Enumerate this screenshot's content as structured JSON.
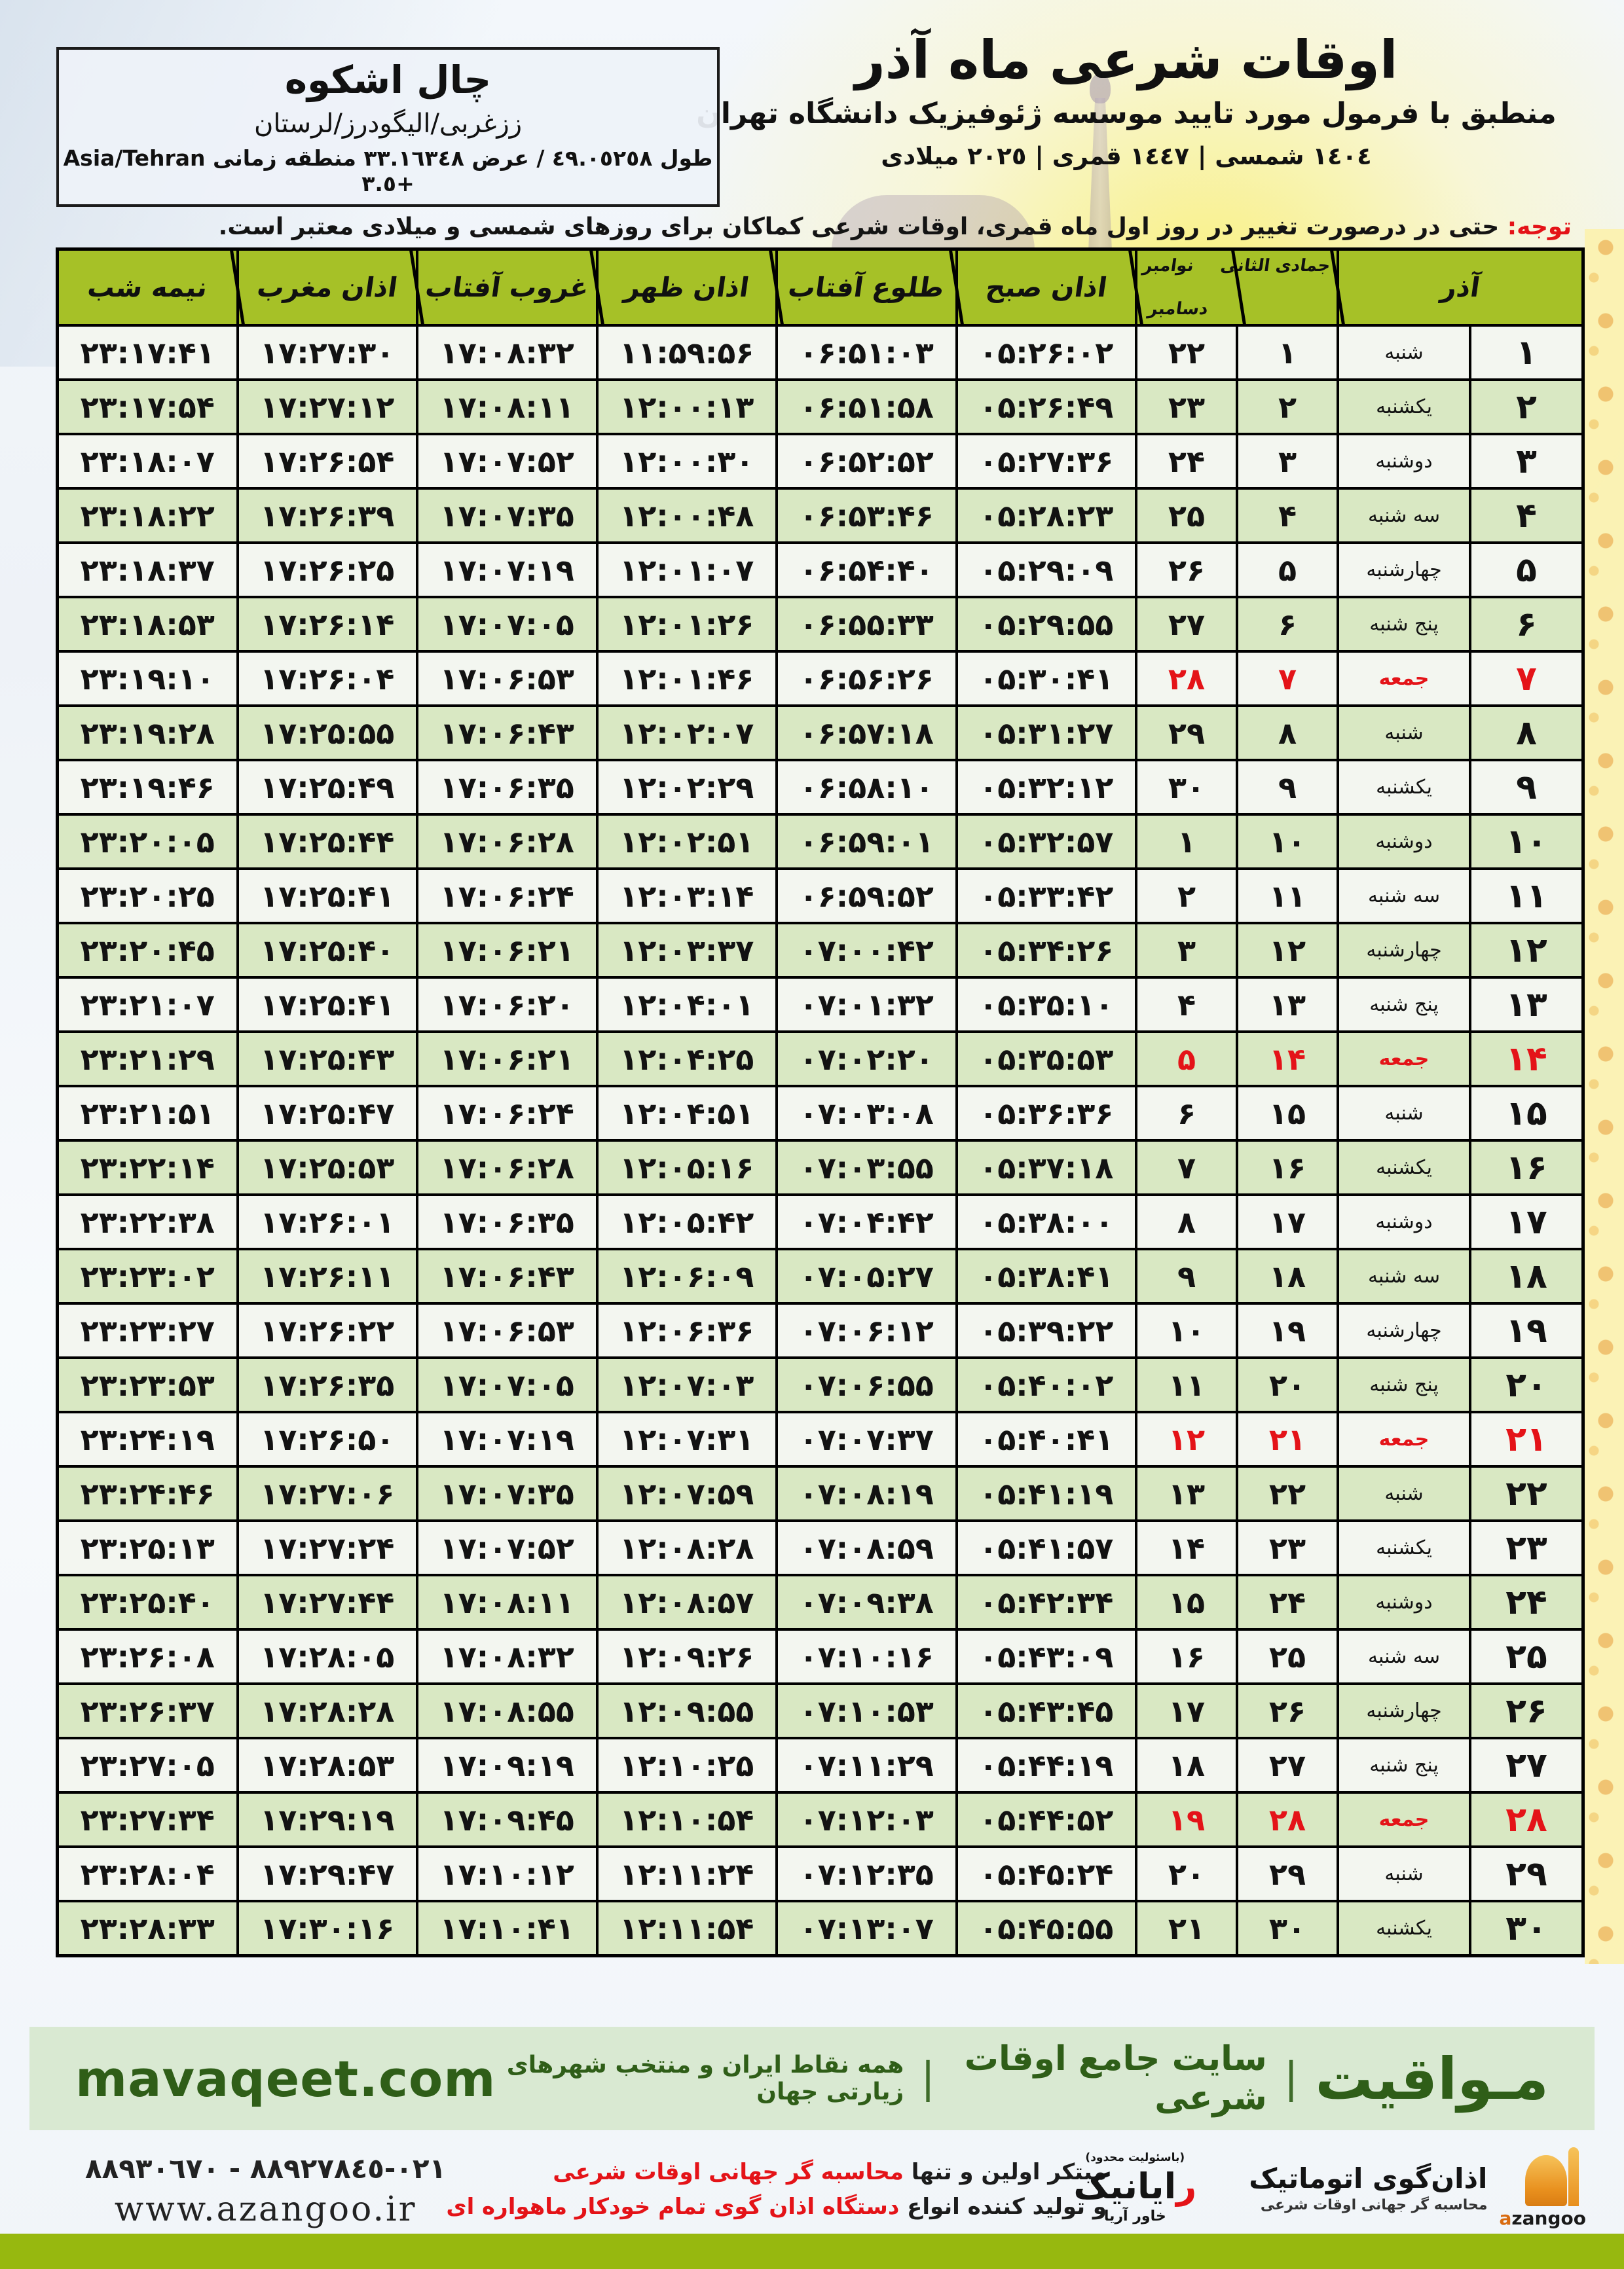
{
  "colors": {
    "headerGreen": "#a6c127",
    "rowOdd": "#f3f6f0",
    "rowEven": "#d9e8c3",
    "red": "#e41318",
    "footerBand": "#d9e9d2",
    "footerGreenText": "#2f5e18",
    "bottomBar": "#97b80f"
  },
  "header": {
    "title": "اوقات شرعی ماه آذر",
    "subtitle": "منطبق با فرمول مورد تایید موسسه ژئوفیزیک دانشگاه تهران",
    "years": "١٤٠٤ شمسی | ١٤٤٧ قمری | ٢٠٢٥ میلادی"
  },
  "location": {
    "name": "چال اشکوه",
    "region": "ززغربی/الیگودرز/لرستان",
    "coords": "طول ٤٩.٠٥٢٥٨ / عرض ٣٣.١٦٣٤٨ منطقه زمانی Asia/Tehran +٣.٥"
  },
  "note": {
    "label": "توجه:",
    "text": " حتی در درصورت تغییر در روز اول ماه قمری، اوقات شرعی کماکان برای روزهای شمسی و میلادی معتبر است."
  },
  "table": {
    "headers": {
      "azar": "آذر",
      "jumada": "جمادی الثانی",
      "november": "نوامبر",
      "december": "دسامبر",
      "sobh": "اذان صبح",
      "tolu": "طلوع آفتاب",
      "zohr": "اذان ظهر",
      "ghorub": "غروب آفتاب",
      "maghreb": "اذان مغرب",
      "nimeshab": "نیمه شب"
    },
    "column_keys": [
      "azar",
      "weekday",
      "jumada",
      "miladi",
      "sobh",
      "tolu",
      "zohr",
      "ghorub",
      "maghreb",
      "nimeshab"
    ],
    "rows": [
      {
        "azar": "۱",
        "weekday": "شنبه",
        "jumada": "۱",
        "miladi": "۲۲",
        "sobh": "۰۵:۲۶:۰۲",
        "tolu": "۰۶:۵۱:۰۳",
        "zohr": "۱۱:۵۹:۵۶",
        "ghorub": "۱۷:۰۸:۳۲",
        "maghreb": "۱۷:۲۷:۳۰",
        "nimeshab": "۲۳:۱۷:۴۱",
        "friday": false
      },
      {
        "azar": "۲",
        "weekday": "یکشنبه",
        "jumada": "۲",
        "miladi": "۲۳",
        "sobh": "۰۵:۲۶:۴۹",
        "tolu": "۰۶:۵۱:۵۸",
        "zohr": "۱۲:۰۰:۱۳",
        "ghorub": "۱۷:۰۸:۱۱",
        "maghreb": "۱۷:۲۷:۱۲",
        "nimeshab": "۲۳:۱۷:۵۴",
        "friday": false
      },
      {
        "azar": "۳",
        "weekday": "دوشنبه",
        "jumada": "۳",
        "miladi": "۲۴",
        "sobh": "۰۵:۲۷:۳۶",
        "tolu": "۰۶:۵۲:۵۲",
        "zohr": "۱۲:۰۰:۳۰",
        "ghorub": "۱۷:۰۷:۵۲",
        "maghreb": "۱۷:۲۶:۵۴",
        "nimeshab": "۲۳:۱۸:۰۷",
        "friday": false
      },
      {
        "azar": "۴",
        "weekday": "سه شنبه",
        "jumada": "۴",
        "miladi": "۲۵",
        "sobh": "۰۵:۲۸:۲۳",
        "tolu": "۰۶:۵۳:۴۶",
        "zohr": "۱۲:۰۰:۴۸",
        "ghorub": "۱۷:۰۷:۳۵",
        "maghreb": "۱۷:۲۶:۳۹",
        "nimeshab": "۲۳:۱۸:۲۲",
        "friday": false
      },
      {
        "azar": "۵",
        "weekday": "چهارشنبه",
        "jumada": "۵",
        "miladi": "۲۶",
        "sobh": "۰۵:۲۹:۰۹",
        "tolu": "۰۶:۵۴:۴۰",
        "zohr": "۱۲:۰۱:۰۷",
        "ghorub": "۱۷:۰۷:۱۹",
        "maghreb": "۱۷:۲۶:۲۵",
        "nimeshab": "۲۳:۱۸:۳۷",
        "friday": false
      },
      {
        "azar": "۶",
        "weekday": "پنج شنبه",
        "jumada": "۶",
        "miladi": "۲۷",
        "sobh": "۰۵:۲۹:۵۵",
        "tolu": "۰۶:۵۵:۳۳",
        "zohr": "۱۲:۰۱:۲۶",
        "ghorub": "۱۷:۰۷:۰۵",
        "maghreb": "۱۷:۲۶:۱۴",
        "nimeshab": "۲۳:۱۸:۵۳",
        "friday": false
      },
      {
        "azar": "۷",
        "weekday": "جمعه",
        "jumada": "۷",
        "miladi": "۲۸",
        "sobh": "۰۵:۳۰:۴۱",
        "tolu": "۰۶:۵۶:۲۶",
        "zohr": "۱۲:۰۱:۴۶",
        "ghorub": "۱۷:۰۶:۵۳",
        "maghreb": "۱۷:۲۶:۰۴",
        "nimeshab": "۲۳:۱۹:۱۰",
        "friday": true
      },
      {
        "azar": "۸",
        "weekday": "شنبه",
        "jumada": "۸",
        "miladi": "۲۹",
        "sobh": "۰۵:۳۱:۲۷",
        "tolu": "۰۶:۵۷:۱۸",
        "zohr": "۱۲:۰۲:۰۷",
        "ghorub": "۱۷:۰۶:۴۳",
        "maghreb": "۱۷:۲۵:۵۵",
        "nimeshab": "۲۳:۱۹:۲۸",
        "friday": false
      },
      {
        "azar": "۹",
        "weekday": "یکشنبه",
        "jumada": "۹",
        "miladi": "۳۰",
        "sobh": "۰۵:۳۲:۱۲",
        "tolu": "۰۶:۵۸:۱۰",
        "zohr": "۱۲:۰۲:۲۹",
        "ghorub": "۱۷:۰۶:۳۵",
        "maghreb": "۱۷:۲۵:۴۹",
        "nimeshab": "۲۳:۱۹:۴۶",
        "friday": false
      },
      {
        "azar": "۱۰",
        "weekday": "دوشنبه",
        "jumada": "۱۰",
        "miladi": "۱",
        "sobh": "۰۵:۳۲:۵۷",
        "tolu": "۰۶:۵۹:۰۱",
        "zohr": "۱۲:۰۲:۵۱",
        "ghorub": "۱۷:۰۶:۲۸",
        "maghreb": "۱۷:۲۵:۴۴",
        "nimeshab": "۲۳:۲۰:۰۵",
        "friday": false
      },
      {
        "azar": "۱۱",
        "weekday": "سه شنبه",
        "jumada": "۱۱",
        "miladi": "۲",
        "sobh": "۰۵:۳۳:۴۲",
        "tolu": "۰۶:۵۹:۵۲",
        "zohr": "۱۲:۰۳:۱۴",
        "ghorub": "۱۷:۰۶:۲۴",
        "maghreb": "۱۷:۲۵:۴۱",
        "nimeshab": "۲۳:۲۰:۲۵",
        "friday": false
      },
      {
        "azar": "۱۲",
        "weekday": "چهارشنبه",
        "jumada": "۱۲",
        "miladi": "۳",
        "sobh": "۰۵:۳۴:۲۶",
        "tolu": "۰۷:۰۰:۴۲",
        "zohr": "۱۲:۰۳:۳۷",
        "ghorub": "۱۷:۰۶:۲۱",
        "maghreb": "۱۷:۲۵:۴۰",
        "nimeshab": "۲۳:۲۰:۴۵",
        "friday": false
      },
      {
        "azar": "۱۳",
        "weekday": "پنج شنبه",
        "jumada": "۱۳",
        "miladi": "۴",
        "sobh": "۰۵:۳۵:۱۰",
        "tolu": "۰۷:۰۱:۳۲",
        "zohr": "۱۲:۰۴:۰۱",
        "ghorub": "۱۷:۰۶:۲۰",
        "maghreb": "۱۷:۲۵:۴۱",
        "nimeshab": "۲۳:۲۱:۰۷",
        "friday": false
      },
      {
        "azar": "۱۴",
        "weekday": "جمعه",
        "jumada": "۱۴",
        "miladi": "۵",
        "sobh": "۰۵:۳۵:۵۳",
        "tolu": "۰۷:۰۲:۲۰",
        "zohr": "۱۲:۰۴:۲۵",
        "ghorub": "۱۷:۰۶:۲۱",
        "maghreb": "۱۷:۲۵:۴۳",
        "nimeshab": "۲۳:۲۱:۲۹",
        "friday": true
      },
      {
        "azar": "۱۵",
        "weekday": "شنبه",
        "jumada": "۱۵",
        "miladi": "۶",
        "sobh": "۰۵:۳۶:۳۶",
        "tolu": "۰۷:۰۳:۰۸",
        "zohr": "۱۲:۰۴:۵۱",
        "ghorub": "۱۷:۰۶:۲۴",
        "maghreb": "۱۷:۲۵:۴۷",
        "nimeshab": "۲۳:۲۱:۵۱",
        "friday": false
      },
      {
        "azar": "۱۶",
        "weekday": "یکشنبه",
        "jumada": "۱۶",
        "miladi": "۷",
        "sobh": "۰۵:۳۷:۱۸",
        "tolu": "۰۷:۰۳:۵۵",
        "zohr": "۱۲:۰۵:۱۶",
        "ghorub": "۱۷:۰۶:۲۸",
        "maghreb": "۱۷:۲۵:۵۳",
        "nimeshab": "۲۳:۲۲:۱۴",
        "friday": false
      },
      {
        "azar": "۱۷",
        "weekday": "دوشنبه",
        "jumada": "۱۷",
        "miladi": "۸",
        "sobh": "۰۵:۳۸:۰۰",
        "tolu": "۰۷:۰۴:۴۲",
        "zohr": "۱۲:۰۵:۴۲",
        "ghorub": "۱۷:۰۶:۳۵",
        "maghreb": "۱۷:۲۶:۰۱",
        "nimeshab": "۲۳:۲۲:۳۸",
        "friday": false
      },
      {
        "azar": "۱۸",
        "weekday": "سه شنبه",
        "jumada": "۱۸",
        "miladi": "۹",
        "sobh": "۰۵:۳۸:۴۱",
        "tolu": "۰۷:۰۵:۲۷",
        "zohr": "۱۲:۰۶:۰۹",
        "ghorub": "۱۷:۰۶:۴۳",
        "maghreb": "۱۷:۲۶:۱۱",
        "nimeshab": "۲۳:۲۳:۰۲",
        "friday": false
      },
      {
        "azar": "۱۹",
        "weekday": "چهارشنبه",
        "jumada": "۱۹",
        "miladi": "۱۰",
        "sobh": "۰۵:۳۹:۲۲",
        "tolu": "۰۷:۰۶:۱۲",
        "zohr": "۱۲:۰۶:۳۶",
        "ghorub": "۱۷:۰۶:۵۳",
        "maghreb": "۱۷:۲۶:۲۲",
        "nimeshab": "۲۳:۲۳:۲۷",
        "friday": false
      },
      {
        "azar": "۲۰",
        "weekday": "پنج شنبه",
        "jumada": "۲۰",
        "miladi": "۱۱",
        "sobh": "۰۵:۴۰:۰۲",
        "tolu": "۰۷:۰۶:۵۵",
        "zohr": "۱۲:۰۷:۰۳",
        "ghorub": "۱۷:۰۷:۰۵",
        "maghreb": "۱۷:۲۶:۳۵",
        "nimeshab": "۲۳:۲۳:۵۳",
        "friday": false
      },
      {
        "azar": "۲۱",
        "weekday": "جمعه",
        "jumada": "۲۱",
        "miladi": "۱۲",
        "sobh": "۰۵:۴۰:۴۱",
        "tolu": "۰۷:۰۷:۳۷",
        "zohr": "۱۲:۰۷:۳۱",
        "ghorub": "۱۷:۰۷:۱۹",
        "maghreb": "۱۷:۲۶:۵۰",
        "nimeshab": "۲۳:۲۴:۱۹",
        "friday": true
      },
      {
        "azar": "۲۲",
        "weekday": "شنبه",
        "jumada": "۲۲",
        "miladi": "۱۳",
        "sobh": "۰۵:۴۱:۱۹",
        "tolu": "۰۷:۰۸:۱۹",
        "zohr": "۱۲:۰۷:۵۹",
        "ghorub": "۱۷:۰۷:۳۵",
        "maghreb": "۱۷:۲۷:۰۶",
        "nimeshab": "۲۳:۲۴:۴۶",
        "friday": false
      },
      {
        "azar": "۲۳",
        "weekday": "یکشنبه",
        "jumada": "۲۳",
        "miladi": "۱۴",
        "sobh": "۰۵:۴۱:۵۷",
        "tolu": "۰۷:۰۸:۵۹",
        "zohr": "۱۲:۰۸:۲۸",
        "ghorub": "۱۷:۰۷:۵۲",
        "maghreb": "۱۷:۲۷:۲۴",
        "nimeshab": "۲۳:۲۵:۱۳",
        "friday": false
      },
      {
        "azar": "۲۴",
        "weekday": "دوشنبه",
        "jumada": "۲۴",
        "miladi": "۱۵",
        "sobh": "۰۵:۴۲:۳۴",
        "tolu": "۰۷:۰۹:۳۸",
        "zohr": "۱۲:۰۸:۵۷",
        "ghorub": "۱۷:۰۸:۱۱",
        "maghreb": "۱۷:۲۷:۴۴",
        "nimeshab": "۲۳:۲۵:۴۰",
        "friday": false
      },
      {
        "azar": "۲۵",
        "weekday": "سه شنبه",
        "jumada": "۲۵",
        "miladi": "۱۶",
        "sobh": "۰۵:۴۳:۰۹",
        "tolu": "۰۷:۱۰:۱۶",
        "zohr": "۱۲:۰۹:۲۶",
        "ghorub": "۱۷:۰۸:۳۲",
        "maghreb": "۱۷:۲۸:۰۵",
        "nimeshab": "۲۳:۲۶:۰۸",
        "friday": false
      },
      {
        "azar": "۲۶",
        "weekday": "چهارشنبه",
        "jumada": "۲۶",
        "miladi": "۱۷",
        "sobh": "۰۵:۴۳:۴۵",
        "tolu": "۰۷:۱۰:۵۳",
        "zohr": "۱۲:۰۹:۵۵",
        "ghorub": "۱۷:۰۸:۵۵",
        "maghreb": "۱۷:۲۸:۲۸",
        "nimeshab": "۲۳:۲۶:۳۷",
        "friday": false
      },
      {
        "azar": "۲۷",
        "weekday": "پنج شنبه",
        "jumada": "۲۷",
        "miladi": "۱۸",
        "sobh": "۰۵:۴۴:۱۹",
        "tolu": "۰۷:۱۱:۲۹",
        "zohr": "۱۲:۱۰:۲۵",
        "ghorub": "۱۷:۰۹:۱۹",
        "maghreb": "۱۷:۲۸:۵۳",
        "nimeshab": "۲۳:۲۷:۰۵",
        "friday": false
      },
      {
        "azar": "۲۸",
        "weekday": "جمعه",
        "jumada": "۲۸",
        "miladi": "۱۹",
        "sobh": "۰۵:۴۴:۵۲",
        "tolu": "۰۷:۱۲:۰۳",
        "zohr": "۱۲:۱۰:۵۴",
        "ghorub": "۱۷:۰۹:۴۵",
        "maghreb": "۱۷:۲۹:۱۹",
        "nimeshab": "۲۳:۲۷:۳۴",
        "friday": true
      },
      {
        "azar": "۲۹",
        "weekday": "شنبه",
        "jumada": "۲۹",
        "miladi": "۲۰",
        "sobh": "۰۵:۴۵:۲۴",
        "tolu": "۰۷:۱۲:۳۵",
        "zohr": "۱۲:۱۱:۲۴",
        "ghorub": "۱۷:۱۰:۱۲",
        "maghreb": "۱۷:۲۹:۴۷",
        "nimeshab": "۲۳:۲۸:۰۴",
        "friday": false
      },
      {
        "azar": "۳۰",
        "weekday": "یکشنبه",
        "jumada": "۳۰",
        "miladi": "۲۱",
        "sobh": "۰۵:۴۵:۵۵",
        "tolu": "۰۷:۱۳:۰۷",
        "zohr": "۱۲:۱۱:۵۴",
        "ghorub": "۱۷:۱۰:۴۱",
        "maghreb": "۱۷:۳۰:۱۶",
        "nimeshab": "۲۳:۲۸:۳۳",
        "friday": false
      }
    ]
  },
  "footer": {
    "band": {
      "brand": "مـواقیت",
      "sep": "|",
      "site": "سایت جامع اوقات شرعی",
      "tagline": "همه نقاط ایران و منتخب شهرهای زیارتی جهان",
      "domain": "mavaqeet.com"
    },
    "middle": {
      "line1_black": "مبتکر اولین و تنها ",
      "line1_red": "محاسبه گر جهانی اوقات شرعی",
      "line2_black": "و تولید کننده انواع ",
      "line2_red": "دستگاه اذان گوی تمام خودکار ماهواره ای"
    },
    "phones": "٠٢١-٨٨٩٢٧٨٤٥ - ٨٨٩٣٠٦٧٠",
    "website": "www.azangoo.ir",
    "azangoo": {
      "title": "اذان‌گوی اتوماتیک",
      "subtitle": "محاسبه گر جهانی اوقات شرعی",
      "brand_first": "a",
      "brand_rest": "zangoo"
    },
    "rayanik": {
      "small": "(باسئولیت محدود)",
      "name_first": "ر",
      "name_rest": "ایانیک",
      "sub": "خاور آریا"
    }
  }
}
